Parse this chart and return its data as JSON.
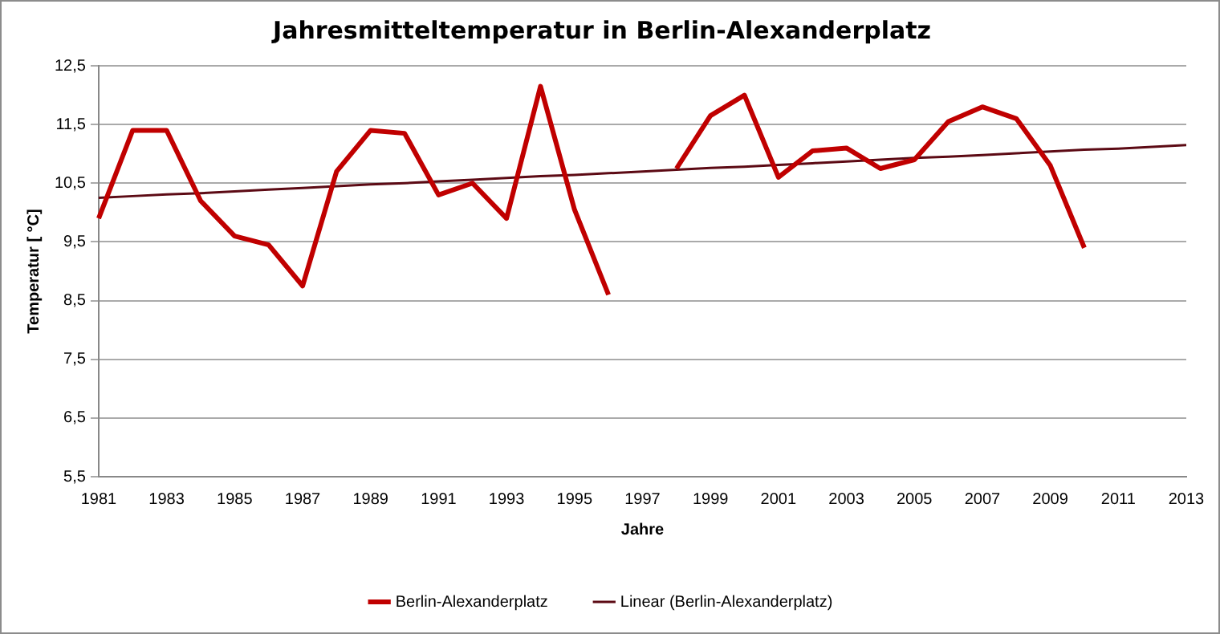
{
  "chart_data": {
    "type": "line",
    "title": "Jahresmitteltemperatur in Berlin-Alexanderplatz",
    "xlabel": "Jahre",
    "ylabel": "Temperatur [ °C]",
    "categories": [
      "1981",
      null,
      "1983",
      null,
      "1985",
      null,
      "1987",
      null,
      "1989",
      null,
      "1991",
      null,
      "1993",
      null,
      "1995",
      null,
      "1997",
      null,
      "1999",
      null,
      "2001",
      null,
      "2003",
      null,
      "2005",
      null,
      "2007",
      null,
      "2009",
      null,
      "2011",
      null,
      "2013"
    ],
    "series": [
      {
        "name": "Berlin-Alexanderplatz",
        "color": "#c00000",
        "values": [
          9.9,
          11.4,
          11.4,
          10.2,
          9.6,
          9.45,
          8.75,
          10.7,
          11.4,
          11.35,
          10.3,
          10.5,
          9.9,
          12.15,
          10.05,
          8.6,
          null,
          10.75,
          11.65,
          12.0,
          10.6,
          11.05,
          11.1,
          10.75,
          10.9,
          11.55,
          11.8,
          11.6,
          10.8,
          9.4,
          null,
          null,
          null
        ]
      },
      {
        "name": "Linear (Berlin-Alexanderplatz)",
        "color": "#5c0a14",
        "type": "line",
        "values": [
          10.25,
          10.28,
          10.31,
          10.33,
          10.36,
          10.39,
          10.42,
          10.45,
          10.48,
          10.5,
          10.53,
          10.56,
          10.59,
          10.62,
          10.64,
          10.67,
          10.7,
          10.73,
          10.76,
          10.78,
          10.81,
          10.84,
          10.87,
          10.9,
          10.93,
          10.95,
          10.98,
          11.01,
          11.04,
          11.07,
          11.09,
          11.12,
          11.15
        ]
      }
    ],
    "ylim": [
      5.5,
      12.5
    ],
    "yticks": [
      {
        "value": 5.5,
        "label": "5,5"
      },
      {
        "value": 6.5,
        "label": "6,5"
      },
      {
        "value": 7.5,
        "label": "7,5"
      },
      {
        "value": 8.5,
        "label": "8,5"
      },
      {
        "value": 9.5,
        "label": "9,5"
      },
      {
        "value": 10.5,
        "label": "10,5"
      },
      {
        "value": 11.5,
        "label": "11,5"
      },
      {
        "value": 12.5,
        "label": "12,5"
      }
    ],
    "grid": "y",
    "legend": "bottom",
    "marker": "none",
    "line_style": "solid"
  }
}
